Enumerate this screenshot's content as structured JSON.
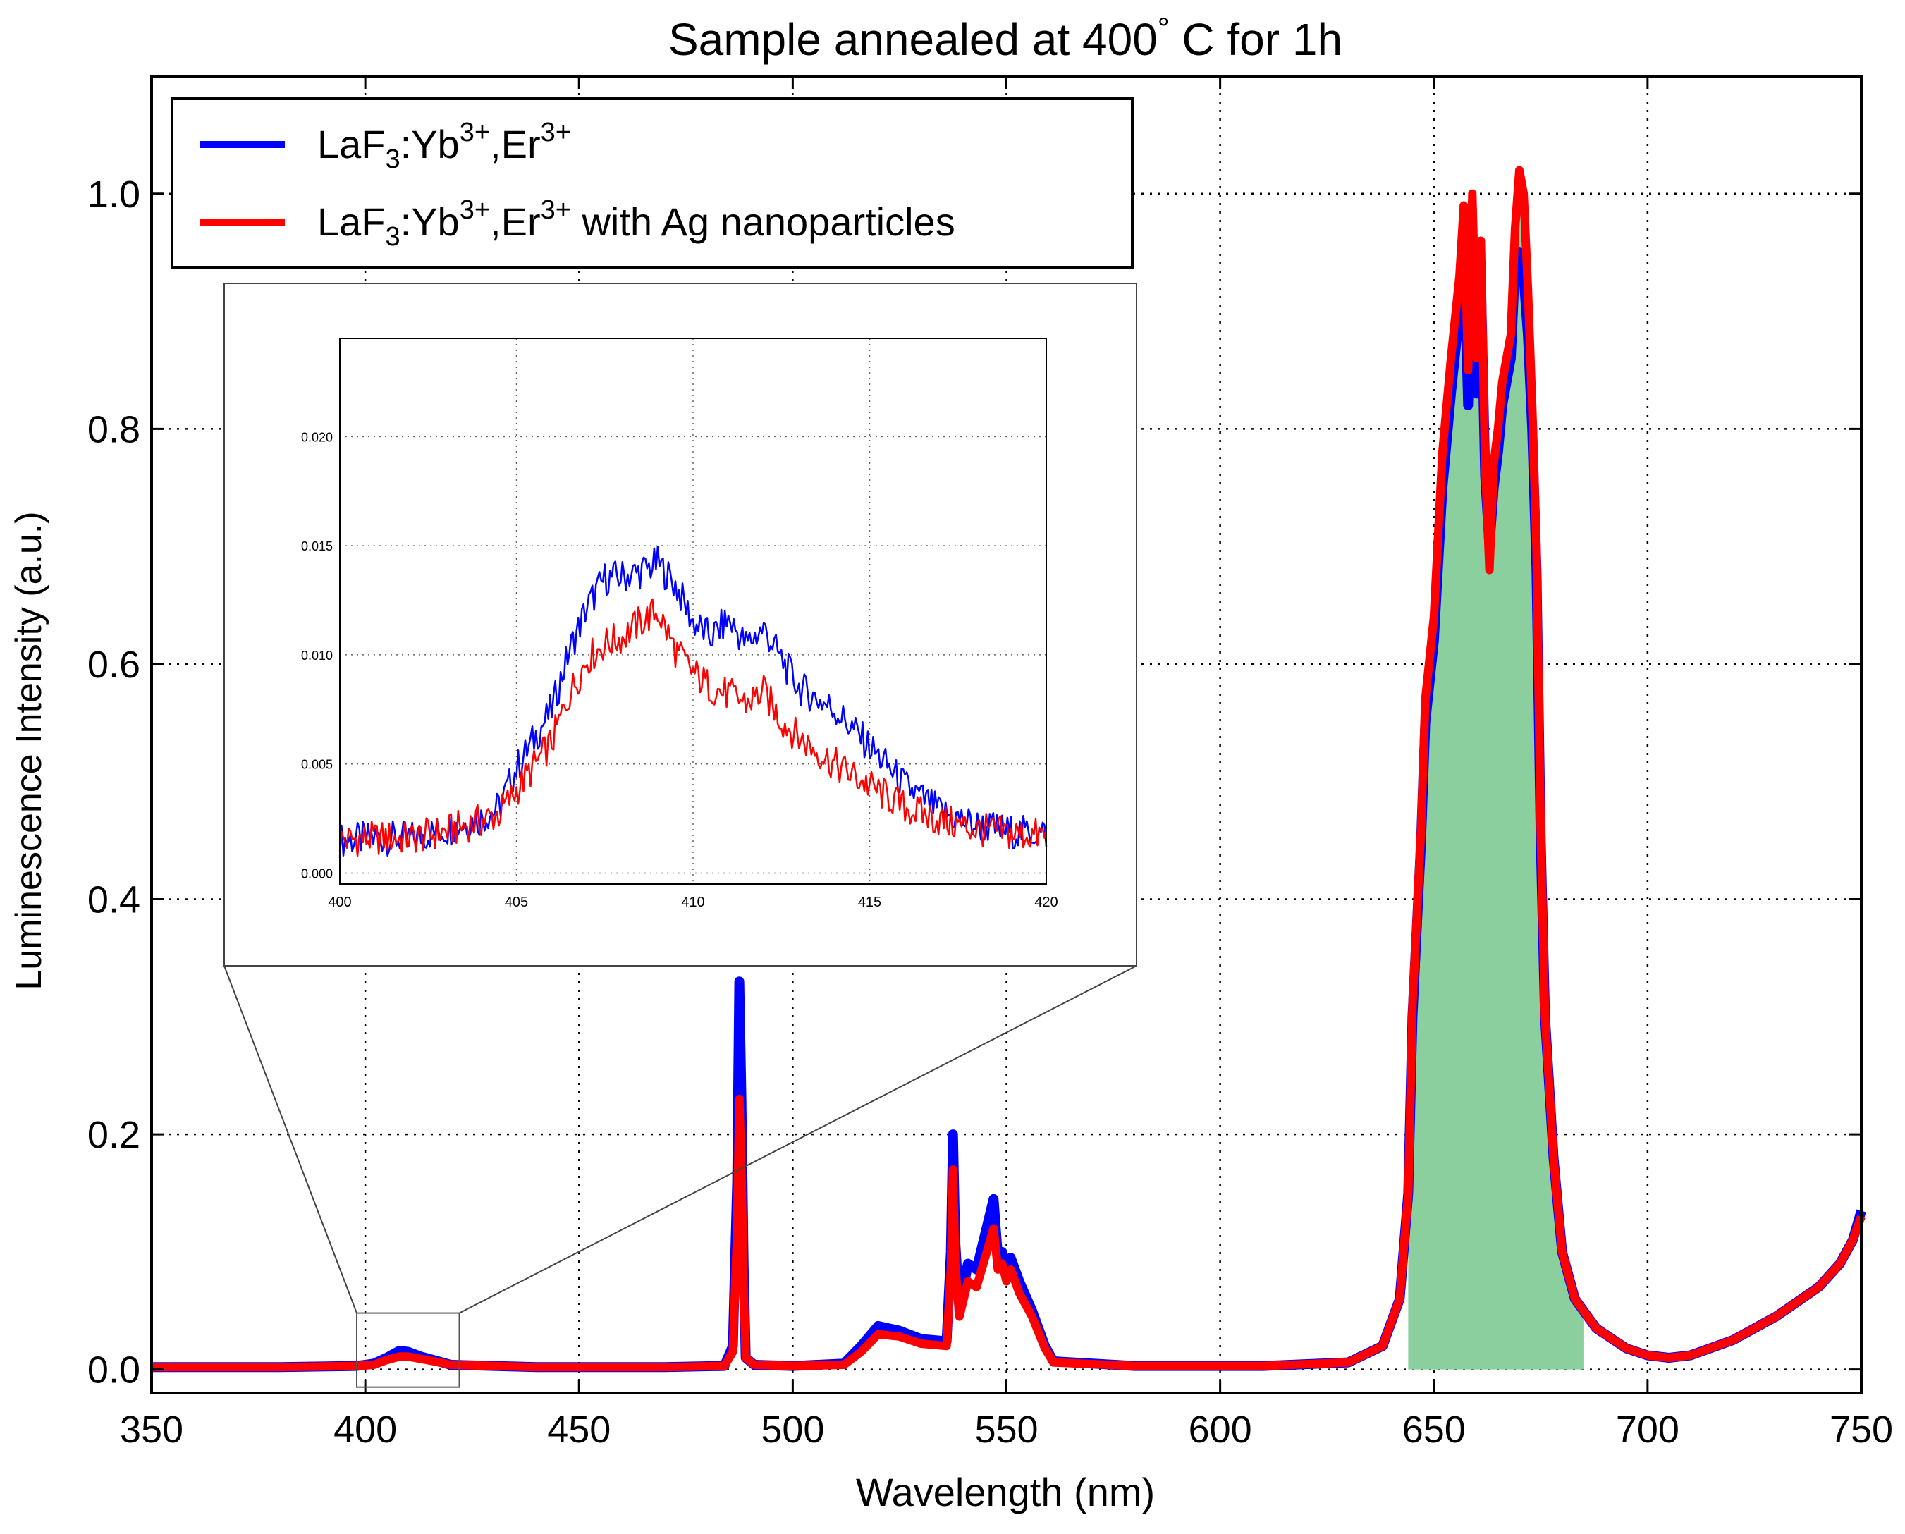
{
  "chart_data": {
    "type": "line",
    "title": "Sample annealed at 400° C for 1h",
    "title_parts": {
      "prefix": "Sample annealed at 400",
      "degree": "°",
      "suffix": " C for 1h"
    },
    "xlabel": "Wavelength (nm)",
    "ylabel": "Luminescence Intensity (a.u.)",
    "xlim": [
      350,
      750
    ],
    "ylim": [
      -0.02,
      1.1
    ],
    "grid": true,
    "x_ticks": [
      350,
      400,
      450,
      500,
      550,
      600,
      650,
      700,
      750
    ],
    "x_tick_labels": [
      "350",
      "400",
      "450",
      "500",
      "550",
      "600",
      "650",
      "700",
      "750"
    ],
    "y_ticks": [
      0.0,
      0.2,
      0.4,
      0.6,
      0.8,
      1.0
    ],
    "y_tick_labels": [
      "0.0",
      "0.2",
      "0.4",
      "0.6",
      "0.8",
      "1.0"
    ],
    "legend": {
      "placement": "top-left",
      "entries": [
        {
          "series": "blue",
          "parts": {
            "a": "LaF",
            "sub": "3",
            "b": ":Yb",
            "sup1": "3+",
            "c": ",Er",
            "sup2": "3+",
            "d": ""
          }
        },
        {
          "series": "red",
          "parts": {
            "a": "LaF",
            "sub": "3",
            "b": ":Yb",
            "sup1": "3+",
            "c": ",Er",
            "sup2": "3+",
            "d": " with Ag nanoparticles"
          }
        }
      ]
    },
    "series": [
      {
        "name": "LaF3:Yb3+,Er3+",
        "color": "#0000ff",
        "x": [
          350,
          380,
          398,
          402,
          405,
          408,
          410,
          413,
          416,
          420,
          440,
          470,
          484,
          486,
          487,
          487.5,
          488,
          488.5,
          489,
          491,
          500,
          512,
          516,
          520,
          525,
          530,
          536,
          537,
          537.5,
          538,
          539,
          541,
          543,
          545,
          547,
          548,
          549,
          550,
          551,
          553,
          556,
          559,
          561,
          580,
          610,
          630,
          638,
          642,
          644,
          645,
          647,
          648,
          650,
          652,
          654,
          656,
          657,
          658,
          659,
          660,
          661,
          662,
          663,
          664,
          665,
          666,
          667,
          668,
          669,
          670,
          671,
          672,
          673,
          674,
          675,
          676,
          678,
          680,
          683,
          688,
          695,
          700,
          705,
          710,
          720,
          730,
          740,
          745,
          748,
          750
        ],
        "y": [
          0.002,
          0.002,
          0.003,
          0.005,
          0.01,
          0.016,
          0.015,
          0.011,
          0.008,
          0.004,
          0.002,
          0.002,
          0.003,
          0.02,
          0.16,
          0.33,
          0.23,
          0.09,
          0.01,
          0.004,
          0.003,
          0.005,
          0.02,
          0.037,
          0.033,
          0.026,
          0.024,
          0.1,
          0.2,
          0.11,
          0.05,
          0.09,
          0.085,
          0.115,
          0.145,
          0.095,
          0.1,
          0.085,
          0.095,
          0.075,
          0.05,
          0.02,
          0.007,
          0.003,
          0.003,
          0.006,
          0.02,
          0.06,
          0.15,
          0.3,
          0.45,
          0.55,
          0.62,
          0.75,
          0.83,
          0.9,
          0.96,
          0.82,
          0.94,
          0.83,
          0.93,
          0.76,
          0.7,
          0.75,
          0.78,
          0.82,
          0.84,
          0.86,
          0.94,
          0.95,
          0.93,
          0.88,
          0.8,
          0.68,
          0.45,
          0.3,
          0.18,
          0.1,
          0.06,
          0.035,
          0.018,
          0.012,
          0.01,
          0.012,
          0.025,
          0.045,
          0.07,
          0.09,
          0.11,
          0.135
        ]
      },
      {
        "name": "LaF3:Yb3+,Er3+ with Ag nanoparticles",
        "color": "#ff0000",
        "x": [
          350,
          380,
          398,
          402,
          405,
          408,
          410,
          413,
          416,
          420,
          440,
          470,
          484,
          486,
          487,
          487.5,
          488,
          488.5,
          489,
          491,
          500,
          512,
          516,
          520,
          525,
          530,
          536,
          537,
          537.5,
          538,
          539,
          541,
          543,
          545,
          547,
          548,
          549,
          550,
          551,
          553,
          556,
          559,
          561,
          580,
          610,
          630,
          638,
          642,
          644,
          645,
          647,
          648,
          650,
          652,
          654,
          656,
          657,
          658,
          659,
          660,
          661,
          662,
          663,
          664,
          665,
          666,
          667,
          668,
          669,
          670,
          671,
          672,
          673,
          674,
          675,
          676,
          678,
          680,
          683,
          688,
          695,
          700,
          705,
          710,
          720,
          730,
          740,
          745,
          748,
          750
        ],
        "y": [
          0.002,
          0.002,
          0.003,
          0.004,
          0.008,
          0.011,
          0.011,
          0.009,
          0.007,
          0.004,
          0.002,
          0.002,
          0.003,
          0.015,
          0.12,
          0.23,
          0.17,
          0.07,
          0.01,
          0.004,
          0.003,
          0.004,
          0.015,
          0.03,
          0.028,
          0.022,
          0.02,
          0.085,
          0.17,
          0.09,
          0.045,
          0.075,
          0.07,
          0.095,
          0.12,
          0.085,
          0.09,
          0.075,
          0.085,
          0.065,
          0.045,
          0.018,
          0.006,
          0.003,
          0.003,
          0.006,
          0.02,
          0.06,
          0.15,
          0.31,
          0.46,
          0.57,
          0.64,
          0.78,
          0.86,
          0.93,
          0.99,
          0.85,
          1.0,
          0.86,
          0.96,
          0.77,
          0.68,
          0.77,
          0.8,
          0.84,
          0.86,
          0.88,
          0.97,
          1.02,
          1.0,
          0.92,
          0.82,
          0.7,
          0.46,
          0.3,
          0.18,
          0.1,
          0.06,
          0.035,
          0.018,
          0.012,
          0.01,
          0.012,
          0.025,
          0.045,
          0.07,
          0.09,
          0.11,
          0.13
        ]
      }
    ],
    "shaded_region": {
      "x_start": 644,
      "x_end": 685,
      "color": "#8ccf9f"
    },
    "inset": {
      "xlim": [
        400,
        420
      ],
      "ylim": [
        -0.0005,
        0.0245
      ],
      "x_ticks": [
        400,
        405,
        410,
        415,
        420
      ],
      "x_tick_labels": [
        "400",
        "405",
        "410",
        "415",
        "420"
      ],
      "y_ticks": [
        0.0,
        0.005,
        0.01,
        0.015,
        0.02
      ],
      "y_tick_labels": [
        "0.000",
        "0.005",
        "0.010",
        "0.015",
        "0.020"
      ],
      "zoom_box": {
        "x": [
          398,
          422
        ],
        "y": [
          -0.015,
          0.048
        ]
      },
      "series": [
        {
          "name": "LaF3:Yb3+,Er3+",
          "color": "#0000ff",
          "x": [
            400,
            401,
            402,
            403,
            404,
            404.5,
            405,
            406,
            406.5,
            407,
            407.5,
            408,
            408.5,
            409,
            409.5,
            410,
            410.5,
            411,
            411.5,
            412,
            412.5,
            413,
            414,
            415,
            416,
            417,
            418,
            419,
            420
          ],
          "y": [
            0.0015,
            0.0016,
            0.0016,
            0.002,
            0.0025,
            0.003,
            0.0048,
            0.0075,
            0.0102,
            0.0122,
            0.0135,
            0.0136,
            0.0138,
            0.0142,
            0.0132,
            0.0115,
            0.0108,
            0.0116,
            0.0105,
            0.0112,
            0.0098,
            0.0085,
            0.0075,
            0.0058,
            0.004,
            0.0028,
            0.0022,
            0.0019,
            0.0018
          ]
        },
        {
          "name": "LaF3:Yb3+,Er3+ with Ag nanoparticles",
          "color": "#ff0000",
          "x": [
            400,
            401,
            402,
            403,
            404,
            404.5,
            405,
            406,
            406.5,
            407,
            407.5,
            408,
            408.5,
            409,
            409.5,
            410,
            410.5,
            411,
            411.5,
            412,
            412.5,
            413,
            414,
            415,
            416,
            417,
            418,
            419,
            420
          ],
          "y": [
            0.0015,
            0.0016,
            0.0016,
            0.0019,
            0.0024,
            0.0027,
            0.0038,
            0.006,
            0.0082,
            0.0098,
            0.0105,
            0.0108,
            0.0115,
            0.012,
            0.0102,
            0.0092,
            0.0085,
            0.0082,
            0.0078,
            0.0083,
            0.007,
            0.0062,
            0.005,
            0.004,
            0.003,
            0.0024,
            0.002,
            0.0018,
            0.0017
          ]
        }
      ]
    }
  }
}
